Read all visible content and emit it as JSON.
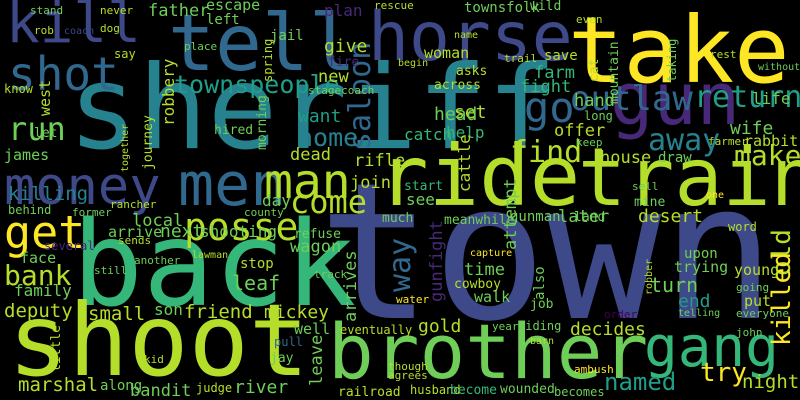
{
  "words": [
    "town",
    "back",
    "sheriff",
    "take",
    "shoot",
    "brother",
    "tell",
    "horse",
    "gun",
    "ride",
    "train",
    "money",
    "men",
    "kill",
    "shot",
    "man",
    "gang",
    "posse",
    "get",
    "come",
    "outlaw",
    "return",
    "go",
    "away",
    "make",
    "find",
    "saloon",
    "home",
    "want",
    "townspeople",
    "run",
    "bank",
    "family",
    "deputy",
    "marshal",
    "rifle",
    "killing",
    "james",
    "way",
    "old",
    "killed",
    "try",
    "night",
    "rabbit",
    "wife",
    "life",
    "named",
    "turn",
    "end",
    "put",
    "young",
    "decides",
    "gold",
    "time",
    "walk",
    "set",
    "head",
    "help",
    "catch",
    "fight",
    "farm",
    "woman",
    "give",
    "plan",
    "new",
    "father",
    "escape",
    "jail",
    "left",
    "robbery",
    "west",
    "dead",
    "join",
    "house",
    "draw",
    "offer",
    "hand",
    "later",
    "desert",
    "see",
    "start",
    "local",
    "day",
    "next",
    "shooting",
    "wagon",
    "arrive",
    "face",
    "small",
    "son",
    "friend",
    "mickey",
    "leaf",
    "stop",
    "arrives",
    "leave",
    "river",
    "bandit",
    "along",
    "judge",
    "railroad",
    "husband",
    "become",
    "wounded",
    "becomes",
    "eventually",
    "well",
    "gunfight",
    "attempt",
    "cattle",
    "job",
    "gunman",
    "meanwhile",
    "much",
    "land",
    "upon",
    "trying",
    "mine",
    "cowboy",
    "capture",
    "barn",
    "also",
    "refuse",
    "hired",
    "morning",
    "journey",
    "together",
    "behind",
    "let",
    "know",
    "little",
    "kid",
    "jay",
    "pull",
    "rescue",
    "townsfolk",
    "wild",
    "stand",
    "rob",
    "never",
    "dog",
    "say",
    "coach",
    "spring",
    "place",
    "fire",
    "stagecoach",
    "begin",
    "name",
    "trail",
    "save",
    "asks",
    "across",
    "cat",
    "taking",
    "mountain",
    "rest",
    "without",
    "even",
    "long",
    "keep",
    "farmer",
    "one",
    "sell",
    "county",
    "former",
    "rancher",
    "lawman",
    "sends",
    "several",
    "another",
    "still",
    "track",
    "water",
    "riding",
    "year",
    "ambush",
    "though",
    "agrees",
    "going",
    "telling",
    "everyone",
    "john",
    "word",
    "robber",
    "order"
  ]
}
